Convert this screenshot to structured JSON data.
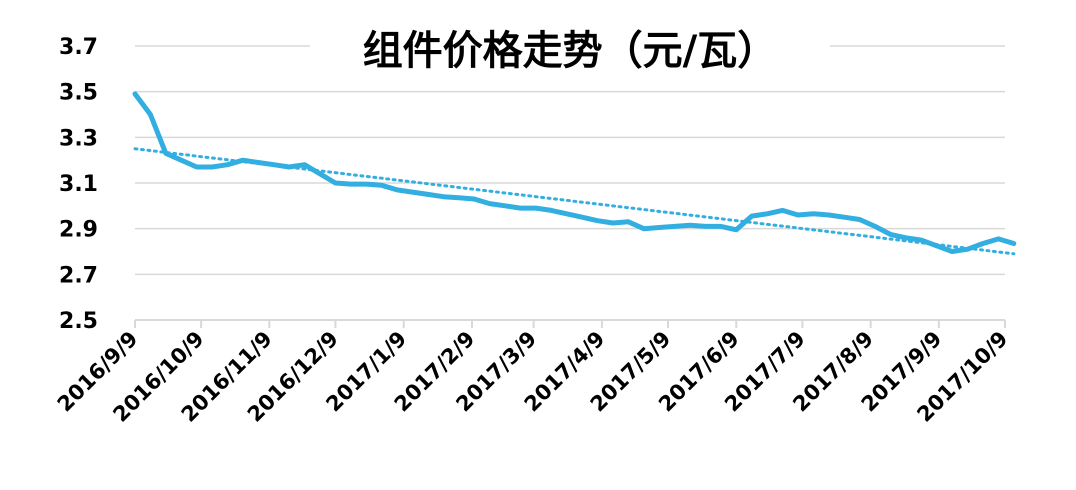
{
  "chart_data": {
    "type": "line",
    "title": "组件价格走势（元/瓦）",
    "xlabel": "",
    "ylabel": "",
    "ylim": [
      2.5,
      3.7
    ],
    "yticks": [
      "2.5",
      "2.7",
      "2.9",
      "3.1",
      "3.3",
      "3.5",
      "3.7"
    ],
    "xtick_labels": [
      "2016/9/9",
      "2016/10/9",
      "2016/11/9",
      "2016/12/9",
      "2017/1/9",
      "2017/2/9",
      "2017/3/9",
      "2017/4/9",
      "2017/5/9",
      "2017/6/9",
      "2017/7/9",
      "2017/8/9",
      "2017/9/9",
      "2017/10/9"
    ],
    "x_start": "2016-09-09",
    "x_end": "2017-10-09",
    "grid": true,
    "legend": "none",
    "colors": {
      "series": "#33aee0",
      "trend": "#33aee0",
      "grid": "#d9d9d9"
    },
    "series": [
      {
        "values": [
          [
            "2016-09-09",
            3.49
          ],
          [
            "2016-09-16",
            3.4
          ],
          [
            "2016-09-23",
            3.23
          ],
          [
            "2016-09-30",
            3.2
          ],
          [
            "2016-10-07",
            3.17
          ],
          [
            "2016-10-14",
            3.17
          ],
          [
            "2016-10-21",
            3.18
          ],
          [
            "2016-10-28",
            3.2
          ],
          [
            "2016-11-04",
            3.19
          ],
          [
            "2016-11-11",
            3.18
          ],
          [
            "2016-11-18",
            3.17
          ],
          [
            "2016-11-25",
            3.18
          ],
          [
            "2016-12-02",
            3.14
          ],
          [
            "2016-12-09",
            3.1
          ],
          [
            "2016-12-16",
            3.095
          ],
          [
            "2016-12-23",
            3.095
          ],
          [
            "2016-12-30",
            3.09
          ],
          [
            "2017-01-06",
            3.07
          ],
          [
            "2017-01-13",
            3.06
          ],
          [
            "2017-01-20",
            3.05
          ],
          [
            "2017-01-27",
            3.04
          ],
          [
            "2017-02-03",
            3.035
          ],
          [
            "2017-02-10",
            3.03
          ],
          [
            "2017-02-17",
            3.01
          ],
          [
            "2017-02-24",
            3.0
          ],
          [
            "2017-03-03",
            2.99
          ],
          [
            "2017-03-10",
            2.99
          ],
          [
            "2017-03-17",
            2.98
          ],
          [
            "2017-03-24",
            2.965
          ],
          [
            "2017-03-31",
            2.95
          ],
          [
            "2017-04-07",
            2.935
          ],
          [
            "2017-04-14",
            2.925
          ],
          [
            "2017-04-21",
            2.93
          ],
          [
            "2017-04-28",
            2.9
          ],
          [
            "2017-05-05",
            2.905
          ],
          [
            "2017-05-12",
            2.91
          ],
          [
            "2017-05-19",
            2.915
          ],
          [
            "2017-05-26",
            2.91
          ],
          [
            "2017-06-02",
            2.91
          ],
          [
            "2017-06-09",
            2.895
          ],
          [
            "2017-06-16",
            2.955
          ],
          [
            "2017-06-23",
            2.965
          ],
          [
            "2017-06-30",
            2.98
          ],
          [
            "2017-07-07",
            2.96
          ],
          [
            "2017-07-14",
            2.965
          ],
          [
            "2017-07-21",
            2.96
          ],
          [
            "2017-07-28",
            2.95
          ],
          [
            "2017-08-04",
            2.94
          ],
          [
            "2017-08-11",
            2.91
          ],
          [
            "2017-08-18",
            2.875
          ],
          [
            "2017-08-25",
            2.86
          ],
          [
            "2017-09-01",
            2.85
          ],
          [
            "2017-09-08",
            2.825
          ],
          [
            "2017-09-15",
            2.8
          ],
          [
            "2017-09-22",
            2.81
          ],
          [
            "2017-09-29",
            2.835
          ],
          [
            "2017-10-06",
            2.855
          ],
          [
            "2017-10-13",
            2.835
          ]
        ]
      }
    ],
    "trendline": {
      "type": "linear",
      "start": [
        "2016-09-09",
        3.25
      ],
      "end": [
        "2017-10-13",
        2.79
      ]
    }
  }
}
